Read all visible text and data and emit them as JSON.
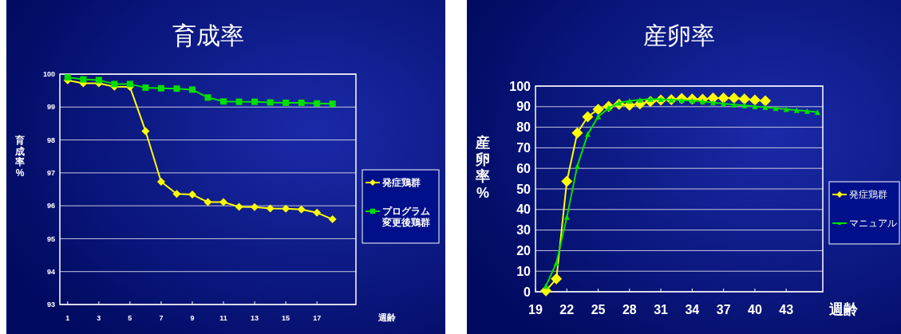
{
  "chart_data": [
    {
      "type": "line",
      "title": "育成率",
      "xlabel": "週齢",
      "ylabel": "育成率%",
      "x": [
        1,
        2,
        3,
        4,
        5,
        6,
        7,
        8,
        9,
        10,
        11,
        12,
        13,
        14,
        15,
        16,
        17,
        18
      ],
      "xlim": [
        0.5,
        19.5
      ],
      "xticks": [
        1,
        3,
        5,
        7,
        9,
        11,
        13,
        15,
        17
      ],
      "ylim": [
        93,
        100
      ],
      "yticks": [
        93,
        94,
        95,
        96,
        97,
        98,
        99,
        100
      ],
      "grid": "y",
      "legend": "right",
      "series": [
        {
          "name": "発症鶏群",
          "color": "#ffff00",
          "marker": "diamond",
          "values": [
            99.81,
            99.72,
            99.72,
            99.62,
            99.61,
            98.27,
            96.73,
            96.36,
            96.34,
            96.11,
            96.11,
            95.97,
            95.96,
            95.92,
            95.91,
            95.89,
            95.79,
            95.59
          ]
        },
        {
          "name": "プログラム変更後鶏群",
          "color": "#00e000",
          "marker": "square",
          "values": [
            99.9,
            99.84,
            99.82,
            99.7,
            99.7,
            99.59,
            99.57,
            99.56,
            99.53,
            99.29,
            99.17,
            99.16,
            99.16,
            99.14,
            99.13,
            99.13,
            99.11,
            99.1
          ]
        }
      ]
    },
    {
      "type": "line",
      "title": "産卵率",
      "xlabel": "週齢",
      "ylabel": "産卵率%",
      "xlim": [
        19,
        46.5
      ],
      "xticks": [
        19,
        22,
        25,
        28,
        31,
        34,
        37,
        40,
        43
      ],
      "ylim": [
        0,
        100
      ],
      "yticks": [
        0,
        10,
        20,
        30,
        40,
        50,
        60,
        70,
        80,
        90,
        100
      ],
      "grid": "y",
      "legend": "right",
      "series": [
        {
          "name": "発症鶏群",
          "color": "#ffff00",
          "marker": "diamond",
          "x": [
            20,
            21,
            22,
            23,
            24,
            25,
            26,
            27,
            28,
            29,
            30,
            31,
            32,
            33,
            34,
            35,
            36,
            37,
            38,
            39,
            40,
            41
          ],
          "values": [
            0.5,
            6.3,
            53.7,
            77.2,
            85.1,
            88.7,
            90.1,
            91.2,
            90.7,
            91.4,
            92.5,
            93.2,
            93.4,
            94.0,
            93.7,
            93.6,
            94.2,
            94.2,
            94.2,
            93.7,
            93.2,
            92.8
          ]
        },
        {
          "name": "マニュアル",
          "color": "#00e000",
          "marker": "triangle",
          "x": [
            20,
            21,
            22,
            23,
            24,
            25,
            26,
            27,
            28,
            29,
            30,
            31,
            32,
            33,
            34,
            35,
            36,
            37,
            38,
            39,
            40,
            41,
            42,
            43,
            44,
            45,
            46
          ],
          "values": [
            2.8,
            14,
            36.3,
            61.1,
            76.6,
            85.2,
            89.3,
            91.9,
            92.8,
            93.3,
            93.7,
            93.6,
            93.3,
            93.1,
            92.9,
            92.5,
            92.0,
            91.5,
            91.0,
            90.6,
            90.1,
            89.7,
            89.2,
            88.8,
            88.3,
            87.9,
            87.3
          ]
        }
      ]
    }
  ]
}
